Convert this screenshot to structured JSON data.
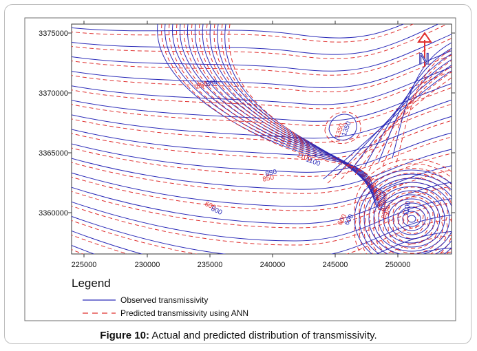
{
  "x_ticks": [
    "225000",
    "230000",
    "235000",
    "240000",
    "245000",
    "250000"
  ],
  "y_ticks": [
    "3375000",
    "3370000",
    "3365000",
    "3360000"
  ],
  "north_label": "N",
  "contour_labels": [
    {
      "text": "850",
      "color": "red"
    },
    {
      "text": "850",
      "color": "blue"
    },
    {
      "text": "1350",
      "color": "red"
    },
    {
      "text": "1350",
      "color": "blue"
    },
    {
      "text": "1100",
      "color": "red"
    },
    {
      "text": "1100",
      "color": "blue"
    },
    {
      "text": "850",
      "color": "blue"
    },
    {
      "text": "850",
      "color": "red"
    },
    {
      "text": "600",
      "color": "red"
    },
    {
      "text": "600",
      "color": "blue"
    },
    {
      "text": "600",
      "color": "red"
    },
    {
      "text": "600",
      "color": "blue"
    },
    {
      "text": "850",
      "color": "red"
    },
    {
      "text": "1100",
      "color": "blue"
    }
  ],
  "legend": {
    "title": "Legend",
    "items": [
      {
        "label": "Observed transmissivity",
        "style": "solid",
        "color": "#2a2ab8"
      },
      {
        "label": "Predicted transmissivity using ANN",
        "style": "dashed",
        "color": "#e0302f"
      }
    ]
  },
  "caption": {
    "label": "Figure 10:",
    "text": " Actual and predicted distribution of transmissivity."
  },
  "colors": {
    "observed": "#2a2ab8",
    "predicted": "#e0302f",
    "frame": "#6f6f6f"
  }
}
